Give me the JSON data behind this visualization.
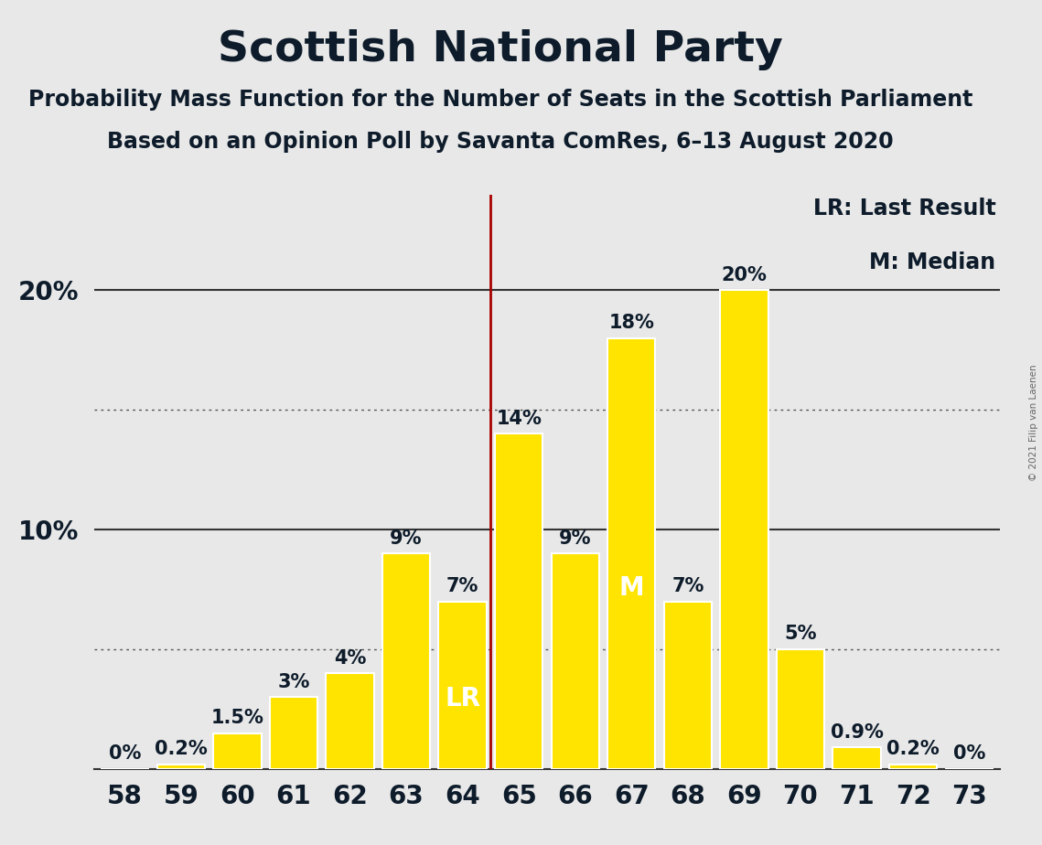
{
  "title": "Scottish National Party",
  "subtitle1": "Probability Mass Function for the Number of Seats in the Scottish Parliament",
  "subtitle2": "Based on an Opinion Poll by Savanta ComRes, 6–13 August 2020",
  "copyright": "© 2021 Filip van Laenen",
  "categories": [
    58,
    59,
    60,
    61,
    62,
    63,
    64,
    65,
    66,
    67,
    68,
    69,
    70,
    71,
    72,
    73
  ],
  "values": [
    0,
    0.2,
    1.5,
    3,
    4,
    9,
    7,
    14,
    9,
    18,
    7,
    20,
    5,
    0.9,
    0.2,
    0
  ],
  "bar_color": "#FFE400",
  "bar_edge_color": "#FFFFFF",
  "background_color": "#E8E8E8",
  "title_color": "#0D1B2A",
  "bar_label_color_inside": "#FFFFFF",
  "bar_label_color_outside": "#0D1B2A",
  "last_result_seat": 64,
  "last_result_color": "#AA0000",
  "median_seat": 67,
  "median_label": "M",
  "lr_label": "LR",
  "ymax": 24,
  "dotted_lines": [
    5,
    15
  ],
  "solid_lines": [
    10,
    20
  ],
  "legend_text1": "LR: Last Result",
  "legend_text2": "M: Median",
  "title_fontsize": 34,
  "subtitle_fontsize": 17,
  "bar_label_fontsize": 15,
  "axis_label_fontsize": 20,
  "legend_fontsize": 17,
  "inside_label_threshold": 6,
  "lr_m_fontsize": 20
}
